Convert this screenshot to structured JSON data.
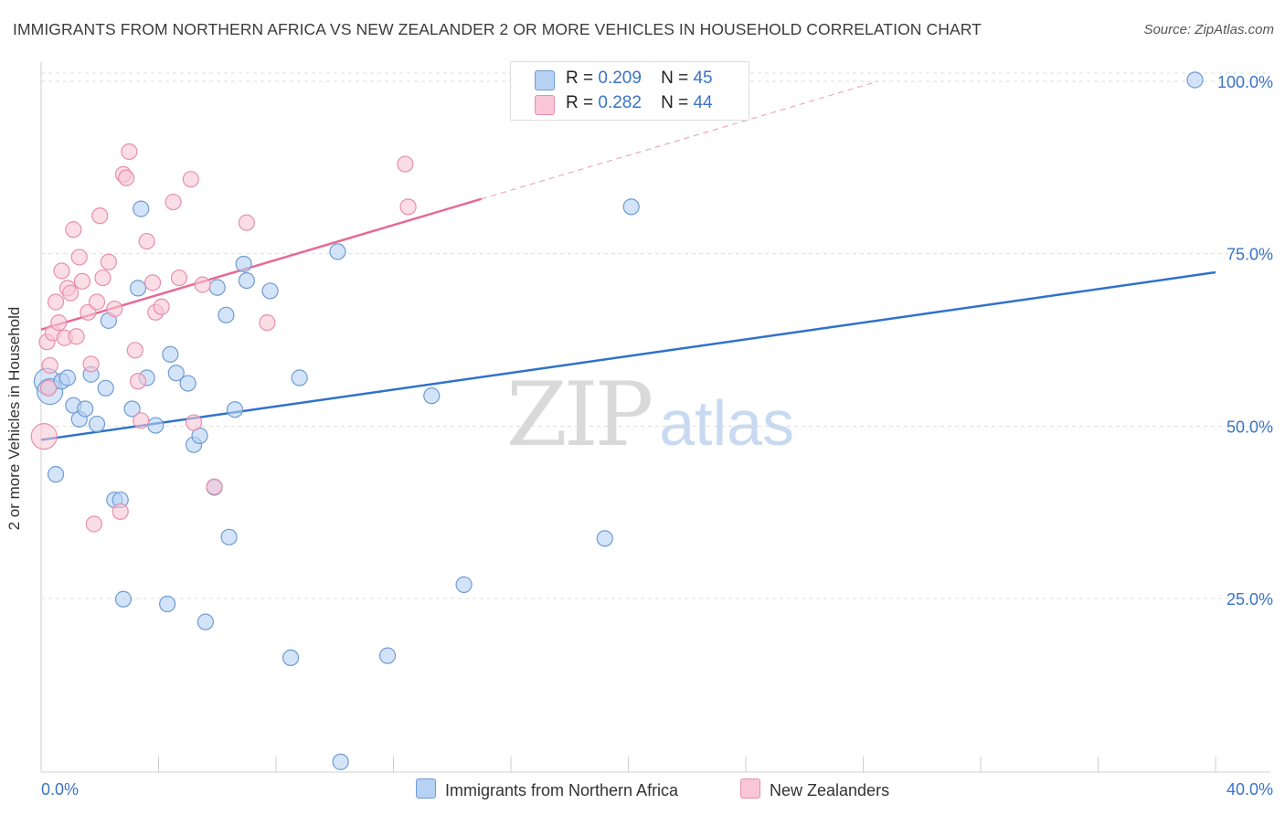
{
  "header": {
    "title": "IMMIGRANTS FROM NORTHERN AFRICA VS NEW ZEALANDER 2 OR MORE VEHICLES IN HOUSEHOLD CORRELATION CHART",
    "source": "Source: ZipAtlas.com"
  },
  "legend": {
    "r_label": "R =",
    "n_label": "N =",
    "series": [
      {
        "name": "Immigrants from Northern Africa",
        "r": "0.209",
        "n": "45"
      },
      {
        "name": "New Zealanders",
        "r": "0.282",
        "n": "44"
      }
    ]
  },
  "watermark": {
    "part1": "ZIP",
    "part2": "atlas"
  },
  "colors": {
    "blue_fill": "#b8d2f3",
    "blue_stroke": "#6e9bd6",
    "blue_line": "#2f72c9",
    "pink_fill": "#f8c6d6",
    "pink_stroke": "#e88fac",
    "pink_line": "#e56a94",
    "tick_label": "#3a74c8",
    "grid": "#dddddd"
  },
  "chart_data": {
    "type": "scatter",
    "title": "IMMIGRANTS FROM NORTHERN AFRICA VS NEW ZEALANDER 2 OR MORE VEHICLES IN HOUSEHOLD CORRELATION CHART",
    "xlabel": "",
    "ylabel": "2 or more Vehicles in Household",
    "xlim": [
      0,
      40
    ],
    "ylim": [
      0,
      102
    ],
    "x_tick_labels": [
      {
        "value": 0,
        "label": "0.0%"
      },
      {
        "value": 40,
        "label": "40.0%"
      }
    ],
    "y_tick_labels": [
      {
        "value": 25,
        "label": "25.0%"
      },
      {
        "value": 50,
        "label": "50.0%"
      },
      {
        "value": 75,
        "label": "75.0%"
      },
      {
        "value": 100,
        "label": "100.0%"
      }
    ],
    "series": [
      {
        "name": "Immigrants from Northern Africa",
        "color": "blue",
        "trend": {
          "x": [
            0,
            40
          ],
          "y": [
            48.0,
            72.3
          ],
          "dashed_from": null
        },
        "points": [
          {
            "x": 0.2,
            "y": 56.5,
            "big": true
          },
          {
            "x": 0.3,
            "y": 55.0,
            "big": true
          },
          {
            "x": 0.5,
            "y": 43.0
          },
          {
            "x": 0.7,
            "y": 56.5
          },
          {
            "x": 0.9,
            "y": 57.0
          },
          {
            "x": 1.1,
            "y": 53.0
          },
          {
            "x": 1.3,
            "y": 51.0
          },
          {
            "x": 1.5,
            "y": 52.5
          },
          {
            "x": 1.7,
            "y": 57.5
          },
          {
            "x": 1.9,
            "y": 50.3
          },
          {
            "x": 2.2,
            "y": 55.5
          },
          {
            "x": 2.3,
            "y": 65.3
          },
          {
            "x": 2.5,
            "y": 39.3
          },
          {
            "x": 2.7,
            "y": 39.3
          },
          {
            "x": 2.8,
            "y": 24.9
          },
          {
            "x": 3.1,
            "y": 52.5
          },
          {
            "x": 3.3,
            "y": 70.0
          },
          {
            "x": 3.4,
            "y": 81.5
          },
          {
            "x": 3.6,
            "y": 57.0
          },
          {
            "x": 3.9,
            "y": 50.1
          },
          {
            "x": 4.3,
            "y": 24.2
          },
          {
            "x": 4.4,
            "y": 60.4
          },
          {
            "x": 4.6,
            "y": 57.7
          },
          {
            "x": 5.0,
            "y": 56.2
          },
          {
            "x": 5.2,
            "y": 47.3
          },
          {
            "x": 5.4,
            "y": 48.6
          },
          {
            "x": 5.6,
            "y": 21.6
          },
          {
            "x": 5.9,
            "y": 41.1
          },
          {
            "x": 6.0,
            "y": 70.1
          },
          {
            "x": 6.3,
            "y": 66.1
          },
          {
            "x": 6.4,
            "y": 33.9
          },
          {
            "x": 6.6,
            "y": 52.4
          },
          {
            "x": 6.9,
            "y": 73.5
          },
          {
            "x": 7.0,
            "y": 71.1
          },
          {
            "x": 7.8,
            "y": 69.6
          },
          {
            "x": 8.5,
            "y": 16.4
          },
          {
            "x": 8.8,
            "y": 57.0
          },
          {
            "x": 10.1,
            "y": 75.3
          },
          {
            "x": 10.2,
            "y": 1.3
          },
          {
            "x": 11.8,
            "y": 16.7
          },
          {
            "x": 13.3,
            "y": 54.4
          },
          {
            "x": 14.4,
            "y": 27.0
          },
          {
            "x": 19.2,
            "y": 33.7
          },
          {
            "x": 20.1,
            "y": 81.8
          },
          {
            "x": 39.3,
            "y": 100.2
          }
        ]
      },
      {
        "name": "New Zealanders",
        "color": "pink",
        "trend": {
          "x": [
            0,
            28.5
          ],
          "y": [
            64.0,
            100.0
          ],
          "dashed_from": 15.0
        },
        "points": [
          {
            "x": 0.1,
            "y": 48.5,
            "big": true
          },
          {
            "x": 0.2,
            "y": 62.2
          },
          {
            "x": 0.3,
            "y": 58.8
          },
          {
            "x": 0.4,
            "y": 63.5
          },
          {
            "x": 0.5,
            "y": 68.0
          },
          {
            "x": 0.6,
            "y": 65.0
          },
          {
            "x": 0.7,
            "y": 72.5
          },
          {
            "x": 0.8,
            "y": 62.8
          },
          {
            "x": 0.9,
            "y": 70.0
          },
          {
            "x": 1.0,
            "y": 69.3
          },
          {
            "x": 1.1,
            "y": 78.5
          },
          {
            "x": 1.2,
            "y": 63.0
          },
          {
            "x": 1.3,
            "y": 74.5
          },
          {
            "x": 1.4,
            "y": 71.0
          },
          {
            "x": 1.6,
            "y": 66.5
          },
          {
            "x": 1.7,
            "y": 59.0
          },
          {
            "x": 1.8,
            "y": 35.8
          },
          {
            "x": 1.9,
            "y": 68.0
          },
          {
            "x": 2.0,
            "y": 80.5
          },
          {
            "x": 2.1,
            "y": 71.5
          },
          {
            "x": 2.3,
            "y": 73.8
          },
          {
            "x": 2.5,
            "y": 67.0
          },
          {
            "x": 2.7,
            "y": 37.6
          },
          {
            "x": 2.8,
            "y": 86.5
          },
          {
            "x": 2.9,
            "y": 86.0
          },
          {
            "x": 3.0,
            "y": 89.8
          },
          {
            "x": 3.2,
            "y": 61.0
          },
          {
            "x": 3.3,
            "y": 56.5
          },
          {
            "x": 3.4,
            "y": 50.8
          },
          {
            "x": 3.6,
            "y": 76.8
          },
          {
            "x": 3.8,
            "y": 70.8
          },
          {
            "x": 3.9,
            "y": 66.5
          },
          {
            "x": 4.1,
            "y": 67.3
          },
          {
            "x": 4.5,
            "y": 82.5
          },
          {
            "x": 4.7,
            "y": 71.5
          },
          {
            "x": 5.1,
            "y": 85.8
          },
          {
            "x": 5.2,
            "y": 50.5
          },
          {
            "x": 5.5,
            "y": 70.5
          },
          {
            "x": 5.9,
            "y": 41.2
          },
          {
            "x": 7.0,
            "y": 79.5
          },
          {
            "x": 7.7,
            "y": 65.0
          },
          {
            "x": 12.4,
            "y": 88.0
          },
          {
            "x": 12.5,
            "y": 81.8
          },
          {
            "x": 0.25,
            "y": 55.5
          }
        ]
      }
    ]
  },
  "bottom_legend": {
    "series1": "Immigrants from Northern Africa",
    "series2": "New Zealanders"
  }
}
